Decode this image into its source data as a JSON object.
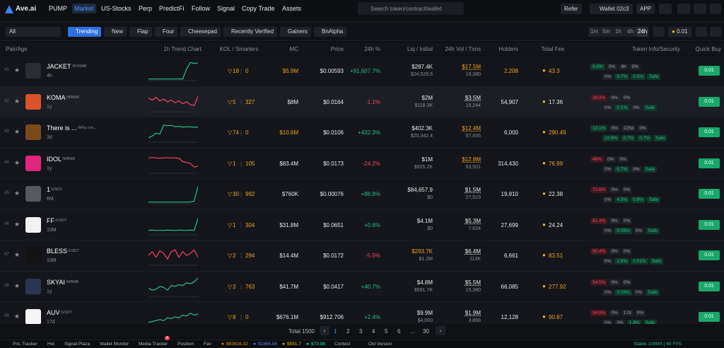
{
  "nav": {
    "logo": "Ave.ai",
    "links": [
      "PUMP",
      "Market",
      "US-Stocks",
      "Perp",
      "PredictFi",
      "Follow",
      "Signal",
      "Copy Trade",
      "Assets"
    ],
    "active_link": 1,
    "search": "Search token/contract/wallet",
    "refer": "Refer",
    "wallet": "Wallet 02c3",
    "app": "APP"
  },
  "filters": {
    "chain": "All",
    "tabs": [
      "Trending",
      "New",
      "Flap",
      "Four",
      "Cheesepad",
      "Recently Verified",
      "Gainers",
      "BnAlpha"
    ],
    "active_tab": 0,
    "periods": [
      "1m",
      "5m",
      "1h",
      "4h",
      "24h"
    ],
    "active_period": 4,
    "buy_amount": "0.01"
  },
  "table": {
    "headers": [
      "Pair/Age",
      "1h Trend Chart",
      "KOL / Smarters",
      "MC",
      "Price",
      "24h %",
      "Liq / Initial",
      "24h Vol / Txns",
      "Holders",
      "Total Fee",
      "Token Info/Security",
      "Quick Buy"
    ],
    "quick_buy": "0.01",
    "rows": [
      {
        "rank": "#1",
        "name": "JACKET",
        "quote": "/NVDAB",
        "age": "4h",
        "logo_color": "#2a2d35",
        "trend": [
          5,
          5,
          5,
          5,
          5,
          6,
          5,
          5,
          6,
          5,
          60,
          95,
          90,
          92
        ],
        "trend_color": "#2dbd85",
        "kol": "18",
        "smart": "0",
        "mc": "$5.9M",
        "price": "$0.00593",
        "change": "+91,607.7%",
        "liq": "$287.4K",
        "initial": "$24,529.6",
        "vol": "$17.5M",
        "txns": "18,380",
        "holders": "2,208",
        "fee": "43.3",
        "accent": [
          "mc",
          "vol",
          "holders",
          "fee"
        ],
        "security_tone": "green",
        "security": [
          [
            "6.6%",
            "0%",
            "4h",
            "0%"
          ],
          [
            "0%",
            "0.7%",
            "0.5%",
            "Safe"
          ]
        ]
      },
      {
        "rank": "#2",
        "name": "KOMA",
        "quote": "/WBNB",
        "age": "1y",
        "logo_color": "#d9532b",
        "trend": [
          70,
          60,
          75,
          55,
          65,
          50,
          60,
          45,
          55,
          40,
          50,
          35,
          30,
          80
        ],
        "trend_color": "#f6465d",
        "kol": "5",
        "smart": "327",
        "mc": "$8M",
        "price": "$0.0164",
        "change": "-1.1%",
        "liq": "$2M",
        "initial": "$118.3K",
        "vol": "$3.5M",
        "txns": "18,244",
        "holders": "54,907",
        "fee": "17.36",
        "accent": [],
        "security_tone": "red",
        "security": [
          [
            "38.8%",
            "0%",
            "0%"
          ],
          [
            "0%",
            "0.1%",
            "0%",
            "Safe"
          ]
        ]
      },
      {
        "rank": "#3",
        "name": "There is ...",
        "quote": "/Why run...",
        "age": "3d",
        "logo_color": "#7a4a1a",
        "trend": [
          20,
          30,
          45,
          40,
          90,
          85,
          88,
          80,
          82,
          78,
          80,
          79,
          78,
          78
        ],
        "trend_color": "#2dbd85",
        "kol": "74",
        "smart": "0",
        "mc": "$10.6M",
        "price": "$0.0106",
        "change": "+432.3%",
        "liq": "$402.3K",
        "initial": "$20,342.4",
        "vol": "$12.4M",
        "txns": "57,935",
        "holders": "6,000",
        "fee": "290.49",
        "accent": [
          "mc",
          "vol",
          "fee"
        ],
        "security_tone": "green",
        "security": [
          [
            "10.1%",
            "0%",
            "225d",
            "0%"
          ],
          [
            "10.8%",
            "0.7%",
            "0.7%",
            "Safe"
          ]
        ]
      },
      {
        "rank": "#4",
        "name": "IDOL",
        "quote": "/WBNB",
        "age": "1y",
        "logo_color": "#e0257a",
        "trend": [
          80,
          82,
          80,
          78,
          80,
          81,
          79,
          80,
          78,
          60,
          55,
          50,
          30,
          35
        ],
        "trend_color": "#f6465d",
        "kol": "1",
        "smart": "105",
        "mc": "$83.4M",
        "price": "$0.0173",
        "change": "-24.2%",
        "liq": "$1M",
        "initial": "$925.2K",
        "vol": "$12.8M",
        "txns": "63,501",
        "holders": "314,430",
        "fee": "76.99",
        "accent": [
          "vol",
          "fee"
        ],
        "security_tone": "red",
        "security": [
          [
            "49%",
            "0%",
            "0%"
          ],
          [
            "0%",
            "0.7%",
            "0%",
            "Safe"
          ]
        ]
      },
      {
        "rank": "#5",
        "name": "1",
        "quote": "/USD1",
        "age": "6M",
        "logo_color": "#555a60",
        "trend": [
          5,
          5,
          5,
          5,
          5,
          5,
          5,
          5,
          5,
          5,
          5,
          6,
          10,
          90
        ],
        "trend_color": "#2dbd85",
        "kol": "30",
        "smart": "992",
        "mc": "$760K",
        "price": "$0.00076",
        "change": "+88.9%",
        "liq": "$84,657.9",
        "initial": "$0",
        "vol": "$1.5M",
        "txns": "27,523",
        "holders": "19,810",
        "fee": "22.38",
        "accent": [],
        "security_tone": "red",
        "security": [
          [
            "72.6%",
            "0%",
            "0%"
          ],
          [
            "0%",
            "4.5%",
            "0.8%",
            "Safe"
          ]
        ]
      },
      {
        "rank": "#6",
        "name": "FF",
        "quote": "/USDT",
        "age": "10M",
        "logo_color": "#f2f2f2",
        "trend": [
          20,
          22,
          20,
          21,
          20,
          22,
          21,
          20,
          22,
          21,
          20,
          22,
          20,
          85
        ],
        "trend_color": "#2dbd85",
        "kol": "1",
        "smart": "304",
        "mc": "$31.8M",
        "price": "$0.0651",
        "change": "+0.6%",
        "liq": "$4.1M",
        "initial": "$0",
        "vol": "$5.3M",
        "txns": "7,624",
        "holders": "27,699",
        "fee": "24.24",
        "accent": [],
        "security_tone": "red",
        "security": [
          [
            "91.4%",
            "0%",
            "0%"
          ],
          [
            "0%",
            "0.05%",
            "0%",
            "Safe"
          ]
        ]
      },
      {
        "rank": "#7",
        "name": "BLESS",
        "quote": "/USDT",
        "age": "10M",
        "logo_color": "#121212",
        "trend": [
          50,
          70,
          40,
          75,
          60,
          30,
          70,
          80,
          40,
          70,
          50,
          60,
          80,
          40
        ],
        "trend_color": "#f6465d",
        "kol": "2",
        "smart": "294",
        "mc": "$14.4M",
        "price": "$0.0172",
        "change": "-5.5%",
        "liq": "$293.7K",
        "initial": "$1.2M",
        "vol": "$6.4M",
        "txns": "113K",
        "holders": "6,661",
        "fee": "83.51",
        "accent": [
          "liq",
          "fee"
        ],
        "security_tone": "red",
        "security": [
          [
            "90.4%",
            "0%",
            "0%"
          ],
          [
            "0%",
            "1.6%",
            "0.01%",
            "Safe"
          ]
        ]
      },
      {
        "rank": "#8",
        "name": "SKYAI",
        "quote": "/WBNB",
        "age": "1y",
        "logo_color": "#2a3550",
        "trend": [
          40,
          30,
          35,
          50,
          45,
          30,
          55,
          50,
          60,
          55,
          70,
          65,
          75,
          95
        ],
        "trend_color": "#2dbd85",
        "kol": "3",
        "smart": "763",
        "mc": "$41.7M",
        "price": "$0.0417",
        "change": "+40.7%",
        "liq": "$4.8M",
        "initial": "$591.7K",
        "vol": "$5.5M",
        "txns": "15,380",
        "holders": "66,085",
        "fee": "277.92",
        "accent": [
          "fee"
        ],
        "security_tone": "red",
        "security": [
          [
            "54.5%",
            "0%",
            "0%"
          ],
          [
            "0%",
            "0.09%",
            "0%",
            "Safe"
          ]
        ]
      },
      {
        "rank": "#9",
        "name": "AUV",
        "quote": "/USDT",
        "age": "17d",
        "logo_color": "#f5f5f5",
        "trend": [
          20,
          25,
          30,
          35,
          30,
          45,
          40,
          50,
          45,
          60,
          55,
          70,
          60,
          65
        ],
        "trend_color": "#2dbd85",
        "kol": "8",
        "smart": "0",
        "mc": "$676.1M",
        "price": "$912.706",
        "change": "+2.4%",
        "liq": "$9.9M",
        "initial": "$4,000",
        "vol": "$1.9M",
        "txns": "3,868",
        "holders": "12,128",
        "fee": "90.87",
        "accent": [
          "fee"
        ],
        "security_tone": "red",
        "security": [
          [
            "94.9%",
            "0%",
            "17d",
            "0%"
          ],
          [
            "0%",
            "0%",
            "1.8%",
            "Safe"
          ]
        ]
      }
    ]
  },
  "pagination": {
    "total": "Total 1500",
    "pages": [
      "1",
      "2",
      "3",
      "4",
      "5",
      "6",
      "...",
      "30"
    ],
    "current": 0
  },
  "footer": {
    "items": [
      "PnL Tracker",
      "Hot",
      "Signal Plaza",
      "Wallet Monitor",
      "Media Tracker",
      "Position",
      "Fav"
    ],
    "media_badge": "4",
    "prices": [
      "$63916.32",
      "$1866.84",
      "$591.7",
      "$73.98"
    ],
    "contest": "Contest",
    "old_version": "Old Version",
    "status": "Stable 109MS | 60 FPS"
  }
}
